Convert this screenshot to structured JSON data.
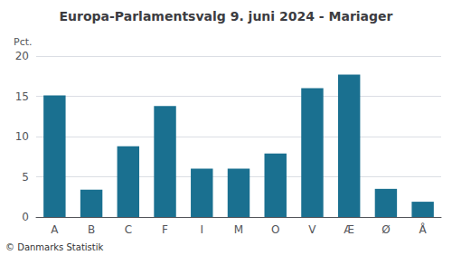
{
  "chart_data": {
    "type": "bar",
    "title": "Europa-Parlamentsvalg 9. juni 2024 - Mariager",
    "ylabel": "Pct.",
    "categories": [
      "A",
      "B",
      "C",
      "F",
      "I",
      "M",
      "O",
      "V",
      "Æ",
      "Ø",
      "Å"
    ],
    "values": [
      15.1,
      3.4,
      8.8,
      13.8,
      6.0,
      6.0,
      7.9,
      16.0,
      17.7,
      3.5,
      1.9
    ],
    "color": "#1a7090",
    "ylim": [
      0,
      20
    ],
    "yticks": [
      0,
      5,
      10,
      15,
      20
    ],
    "grid": true,
    "annotations": [
      "© Danmarks Statistik"
    ]
  }
}
